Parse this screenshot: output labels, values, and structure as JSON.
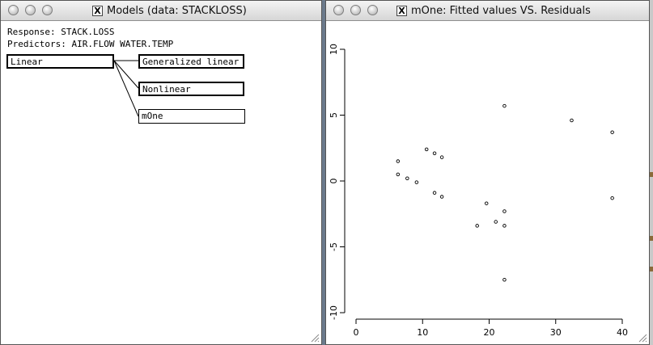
{
  "left_window": {
    "title": "Models (data: STACKLOSS)",
    "response_text": "Response: STACK.LOSS",
    "predictors_text": "Predictors: AIR.FLOW  WATER.TEMP",
    "model_tree": {
      "root": "Linear",
      "children": [
        "Generalized linear",
        "Nonlinear",
        "mOne"
      ]
    }
  },
  "right_window": {
    "title": "mOne: Fitted values VS. Residuals",
    "chart_data": {
      "type": "scatter",
      "title": "",
      "xlabel": "",
      "ylabel": "",
      "xlim": [
        0,
        40
      ],
      "ylim": [
        -10,
        10
      ],
      "x_ticks": [
        "0",
        "10",
        "20",
        "30",
        "40"
      ],
      "y_ticks": [
        "10",
        "5",
        "0",
        "-5",
        "-10"
      ],
      "grid": false,
      "points": [
        {
          "x": 6.3,
          "y": 1.5
        },
        {
          "x": 6.3,
          "y": 0.5
        },
        {
          "x": 7.7,
          "y": 0.2
        },
        {
          "x": 9.1,
          "y": -0.1
        },
        {
          "x": 10.6,
          "y": 2.4
        },
        {
          "x": 11.8,
          "y": 2.1
        },
        {
          "x": 11.8,
          "y": -0.9
        },
        {
          "x": 12.9,
          "y": 1.8
        },
        {
          "x": 12.9,
          "y": -1.2
        },
        {
          "x": 18.2,
          "y": -3.4
        },
        {
          "x": 19.6,
          "y": -1.7
        },
        {
          "x": 21.0,
          "y": -3.1
        },
        {
          "x": 22.3,
          "y": 5.7
        },
        {
          "x": 22.3,
          "y": -2.3
        },
        {
          "x": 22.3,
          "y": -3.4
        },
        {
          "x": 22.3,
          "y": -7.5
        },
        {
          "x": 32.4,
          "y": 4.6
        },
        {
          "x": 38.5,
          "y": 3.7
        },
        {
          "x": 38.5,
          "y": -1.3
        }
      ]
    }
  }
}
